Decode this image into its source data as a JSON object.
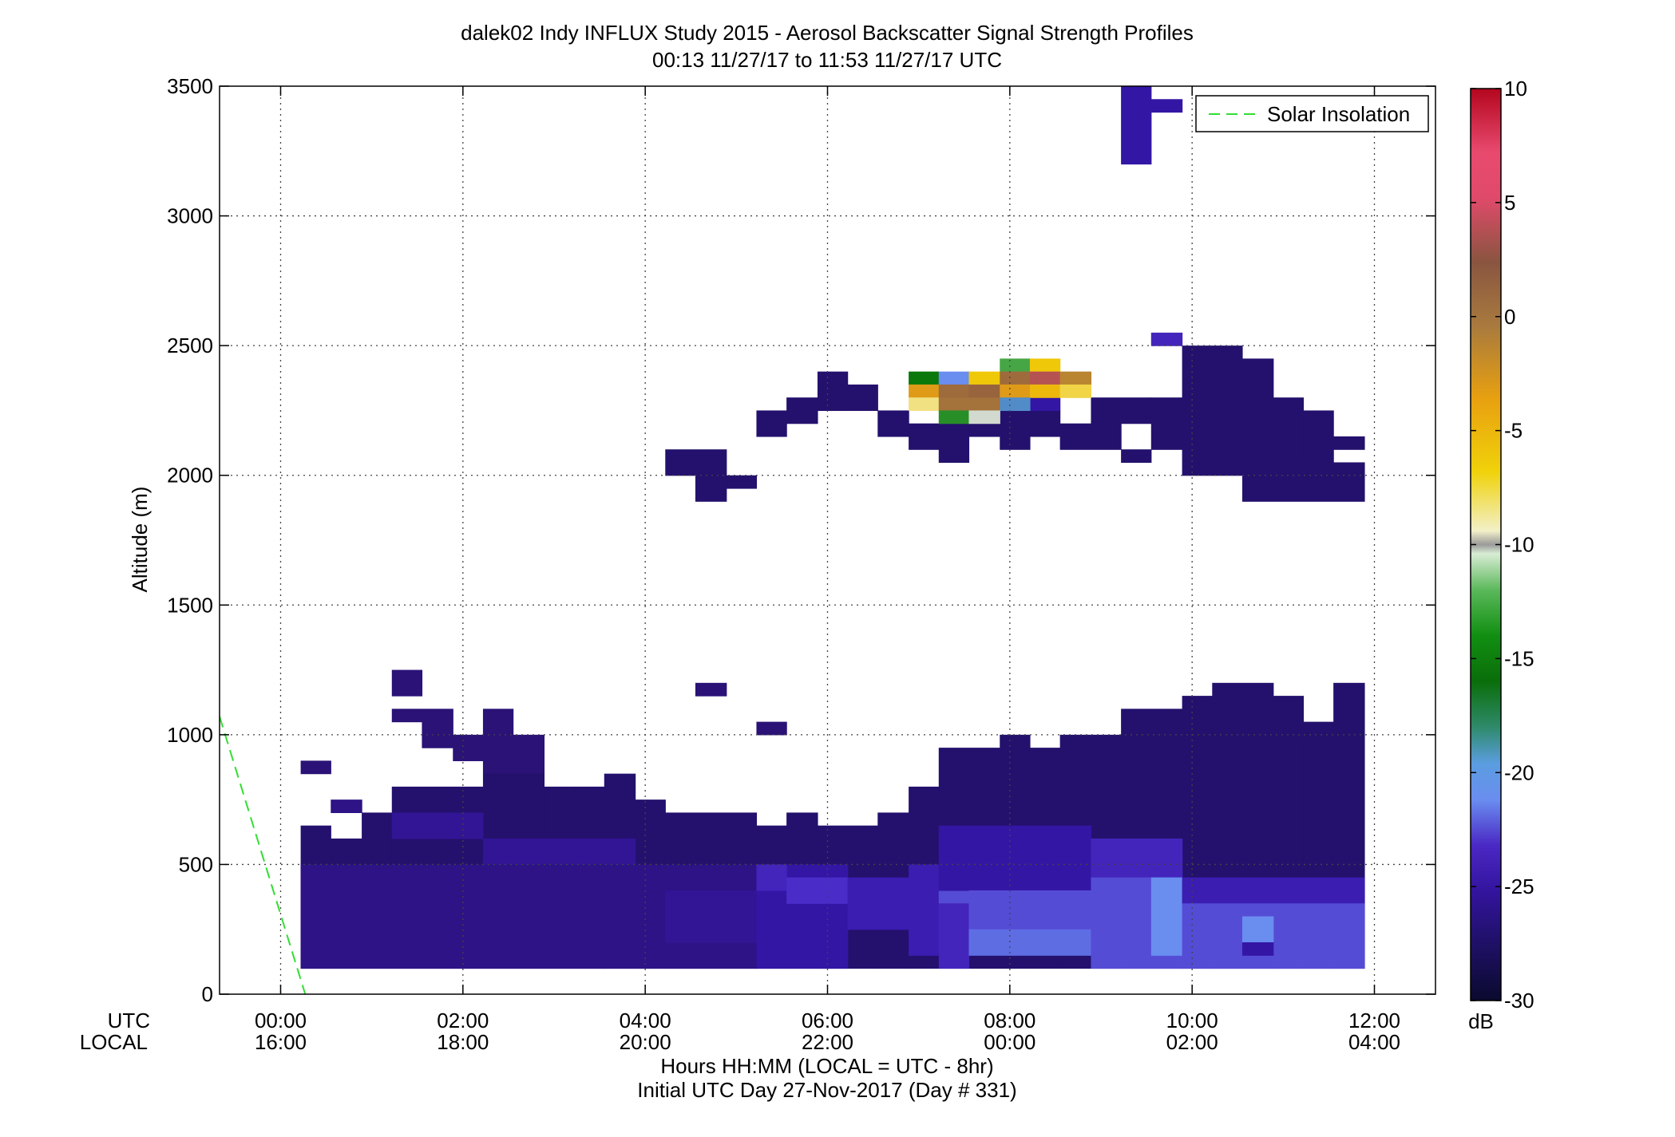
{
  "chart_data": {
    "type": "heatmap",
    "title": "dalek02 Indy INFLUX Study 2015 - Aerosol Backscatter Signal Strength Profiles",
    "subtitle": "00:13 11/27/17 to 11:53 11/27/17  UTC",
    "ylabel": "Altitude (m)",
    "xlabel": "Hours HH:MM  (LOCAL = UTC - 8hr)",
    "xlabel2": "Initial UTC Day 27-Nov-2017 (Day # 331)",
    "x_axis_row_labels": [
      "UTC",
      "LOCAL"
    ],
    "xlim_hours": [
      -0.67,
      12.67
    ],
    "ylim": [
      0,
      3500
    ],
    "y_ticks": [
      0,
      500,
      1000,
      1500,
      2000,
      2500,
      3000,
      3500
    ],
    "x_ticks_hours": [
      0,
      2,
      4,
      6,
      8,
      10,
      12
    ],
    "x_tick_labels_utc": [
      "00:00",
      "02:00",
      "04:00",
      "06:00",
      "08:00",
      "10:00",
      "12:00"
    ],
    "x_tick_labels_local": [
      "16:00",
      "18:00",
      "20:00",
      "22:00",
      "00:00",
      "02:00",
      "04:00"
    ],
    "grid": true,
    "legend": {
      "placement": "top-right",
      "entries": [
        {
          "label": "Solar Insolation",
          "color": "#33dd33",
          "style": "dashed"
        }
      ]
    },
    "colorbar": {
      "range": [
        -30,
        10
      ],
      "ticks": [
        10,
        5,
        0,
        -5,
        -10,
        -15,
        -20,
        -25,
        -30
      ],
      "unit": "dB"
    },
    "solar_insolation_line": [
      [
        -0.67,
        1070
      ],
      [
        0.27,
        0
      ]
    ],
    "bin_width_hours": 0.333,
    "bin_height_m": 50,
    "regions": [
      {
        "value": -26.5,
        "x0": 0.22,
        "x1": 0.55,
        "y0": 850,
        "y1": 900
      },
      {
        "value": -26,
        "x0": 0.55,
        "x1": 0.89,
        "y0": 700,
        "y1": 750
      },
      {
        "value": -26.5,
        "x0": 1.22,
        "x1": 1.55,
        "y0": 1150,
        "y1": 1250
      },
      {
        "value": -26.5,
        "x0": 1.22,
        "x1": 1.89,
        "y0": 1050,
        "y1": 1100
      },
      {
        "value": -26.5,
        "x0": 1.55,
        "x1": 1.89,
        "y0": 950,
        "y1": 1050
      },
      {
        "value": -26.5,
        "x0": 2.22,
        "x1": 2.55,
        "y0": 1000,
        "y1": 1100
      },
      {
        "value": -26.5,
        "x0": 1.89,
        "x1": 2.89,
        "y0": 900,
        "y1": 1000
      },
      {
        "value": -26.5,
        "x0": 2.22,
        "x1": 2.89,
        "y0": 850,
        "y1": 900
      },
      {
        "value": -26.5,
        "x0": 4.55,
        "x1": 4.89,
        "y0": 1150,
        "y1": 1200
      },
      {
        "value": -26.5,
        "x0": 5.22,
        "x1": 5.55,
        "y0": 1000,
        "y1": 1050
      },
      {
        "value": -27,
        "x0": 0.22,
        "x1": 0.55,
        "y0": 100,
        "y1": 650
      },
      {
        "value": -27,
        "x0": 0.55,
        "x1": 0.89,
        "y0": 100,
        "y1": 600
      },
      {
        "value": -27,
        "x0": 0.89,
        "x1": 1.22,
        "y0": 100,
        "y1": 700
      },
      {
        "value": -27,
        "x0": 1.22,
        "x1": 2.22,
        "y0": 100,
        "y1": 800
      },
      {
        "value": -27,
        "x0": 2.22,
        "x1": 2.89,
        "y0": 100,
        "y1": 850
      },
      {
        "value": -27,
        "x0": 2.89,
        "x1": 3.22,
        "y0": 100,
        "y1": 800
      },
      {
        "value": -27,
        "x0": 3.22,
        "x1": 3.55,
        "y0": 100,
        "y1": 800
      },
      {
        "value": -27,
        "x0": 3.55,
        "x1": 3.89,
        "y0": 100,
        "y1": 850
      },
      {
        "value": -27,
        "x0": 3.89,
        "x1": 4.22,
        "y0": 100,
        "y1": 750
      },
      {
        "value": -27,
        "x0": 4.22,
        "x1": 5.22,
        "y0": 100,
        "y1": 700
      },
      {
        "value": -27,
        "x0": 5.22,
        "x1": 5.55,
        "y0": 100,
        "y1": 650
      },
      {
        "value": -27,
        "x0": 5.55,
        "x1": 5.89,
        "y0": 100,
        "y1": 700
      },
      {
        "value": -27,
        "x0": 5.89,
        "x1": 6.55,
        "y0": 100,
        "y1": 650
      },
      {
        "value": -27,
        "x0": 6.55,
        "x1": 6.89,
        "y0": 100,
        "y1": 700
      },
      {
        "value": -27,
        "x0": 6.89,
        "x1": 7.22,
        "y0": 100,
        "y1": 800
      },
      {
        "value": -27,
        "x0": 7.22,
        "x1": 7.89,
        "y0": 100,
        "y1": 950
      },
      {
        "value": -27,
        "x0": 7.89,
        "x1": 8.22,
        "y0": 100,
        "y1": 1000
      },
      {
        "value": -27,
        "x0": 8.22,
        "x1": 8.55,
        "y0": 100,
        "y1": 950
      },
      {
        "value": -27,
        "x0": 8.55,
        "x1": 9.22,
        "y0": 100,
        "y1": 1000
      },
      {
        "value": -27,
        "x0": 9.22,
        "x1": 9.89,
        "y0": 100,
        "y1": 1100
      },
      {
        "value": -27,
        "x0": 9.89,
        "x1": 10.22,
        "y0": 100,
        "y1": 1150
      },
      {
        "value": -27,
        "x0": 10.22,
        "x1": 10.89,
        "y0": 100,
        "y1": 1200
      },
      {
        "value": -27,
        "x0": 10.89,
        "x1": 11.22,
        "y0": 100,
        "y1": 1150
      },
      {
        "value": -27,
        "x0": 11.22,
        "x1": 11.55,
        "y0": 100,
        "y1": 1050
      },
      {
        "value": -27,
        "x0": 11.55,
        "x1": 11.89,
        "y0": 100,
        "y1": 1200
      },
      {
        "value": -25.5,
        "x0": 1.22,
        "x1": 2.22,
        "y0": 600,
        "y1": 700
      },
      {
        "value": -25.5,
        "x0": 2.22,
        "x1": 3.89,
        "y0": 500,
        "y1": 600
      },
      {
        "value": -26,
        "x0": 0.22,
        "x1": 5.22,
        "y0": 100,
        "y1": 500
      },
      {
        "value": -25.5,
        "x0": 4.22,
        "x1": 5.22,
        "y0": 200,
        "y1": 400
      },
      {
        "value": -25,
        "x0": 5.22,
        "x1": 6.22,
        "y0": 100,
        "y1": 500
      },
      {
        "value": -24,
        "x0": 5.22,
        "x1": 5.55,
        "y0": 400,
        "y1": 500
      },
      {
        "value": -23.5,
        "x0": 5.55,
        "x1": 6.22,
        "y0": 350,
        "y1": 450
      },
      {
        "value": -24.5,
        "x0": 6.22,
        "x1": 6.89,
        "y0": 250,
        "y1": 450
      },
      {
        "value": -24.5,
        "x0": 6.89,
        "x1": 7.22,
        "y0": 150,
        "y1": 500
      },
      {
        "value": -23,
        "x0": 7.22,
        "x1": 7.55,
        "y0": 350,
        "y1": 400
      },
      {
        "value": -24,
        "x0": 7.22,
        "x1": 7.55,
        "y0": 100,
        "y1": 350
      },
      {
        "value": -25,
        "x0": 7.22,
        "x1": 8.89,
        "y0": 400,
        "y1": 650
      },
      {
        "value": -23,
        "x0": 7.55,
        "x1": 8.89,
        "y0": 250,
        "y1": 400
      },
      {
        "value": -22.5,
        "x0": 7.55,
        "x1": 8.89,
        "y0": 150,
        "y1": 250
      },
      {
        "value": -24,
        "x0": 8.89,
        "x1": 9.89,
        "y0": 450,
        "y1": 600
      },
      {
        "value": -23,
        "x0": 8.89,
        "x1": 9.89,
        "y0": 100,
        "y1": 450
      },
      {
        "value": -22,
        "x0": 9.55,
        "x1": 9.89,
        "y0": 150,
        "y1": 450
      },
      {
        "value": -24.5,
        "x0": 9.89,
        "x1": 11.89,
        "y0": 350,
        "y1": 450
      },
      {
        "value": -23,
        "x0": 9.89,
        "x1": 11.89,
        "y0": 100,
        "y1": 350
      },
      {
        "value": -22,
        "x0": 10.55,
        "x1": 10.89,
        "y0": 200,
        "y1": 300
      },
      {
        "value": -25,
        "x0": 10.55,
        "x1": 10.89,
        "y0": 150,
        "y1": 200
      },
      {
        "value": -27,
        "x0": 4.22,
        "x1": 4.89,
        "y0": 2000,
        "y1": 2100
      },
      {
        "value": -27,
        "x0": 4.55,
        "x1": 4.89,
        "y0": 1900,
        "y1": 2000
      },
      {
        "value": -27,
        "x0": 4.89,
        "x1": 5.22,
        "y0": 1950,
        "y1": 2000
      },
      {
        "value": -27,
        "x0": 5.22,
        "x1": 5.55,
        "y0": 2150,
        "y1": 2250
      },
      {
        "value": -27,
        "x0": 5.55,
        "x1": 5.89,
        "y0": 2200,
        "y1": 2300
      },
      {
        "value": -27,
        "x0": 5.89,
        "x1": 6.22,
        "y0": 2250,
        "y1": 2400
      },
      {
        "value": -27,
        "x0": 6.22,
        "x1": 6.55,
        "y0": 2250,
        "y1": 2350
      },
      {
        "value": -27,
        "x0": 6.55,
        "x1": 6.89,
        "y0": 2150,
        "y1": 2250
      },
      {
        "value": -27,
        "x0": 6.89,
        "x1": 7.55,
        "y0": 2100,
        "y1": 2200
      },
      {
        "value": -27,
        "x0": 7.22,
        "x1": 7.55,
        "y0": 2050,
        "y1": 2100
      },
      {
        "value": -27,
        "x0": 7.55,
        "x1": 8.55,
        "y0": 2150,
        "y1": 2250
      },
      {
        "value": -27,
        "x0": 7.89,
        "x1": 8.22,
        "y0": 2100,
        "y1": 2150
      },
      {
        "value": -27,
        "x0": 8.55,
        "x1": 9.22,
        "y0": 2100,
        "y1": 2200
      },
      {
        "value": -27,
        "x0": 8.89,
        "x1": 9.55,
        "y0": 2200,
        "y1": 2300
      },
      {
        "value": -27,
        "x0": 9.22,
        "x1": 9.55,
        "y0": 2050,
        "y1": 2100
      },
      {
        "value": -27,
        "x0": 9.55,
        "x1": 9.89,
        "y0": 2100,
        "y1": 2300
      },
      {
        "value": -27,
        "x0": 9.89,
        "x1": 10.55,
        "y0": 2200,
        "y1": 2500
      },
      {
        "value": -27,
        "x0": 9.89,
        "x1": 10.55,
        "y0": 2000,
        "y1": 2200
      },
      {
        "value": -27,
        "x0": 10.55,
        "x1": 10.89,
        "y0": 2050,
        "y1": 2450
      },
      {
        "value": -27,
        "x0": 10.89,
        "x1": 11.22,
        "y0": 2050,
        "y1": 2300
      },
      {
        "value": -27,
        "x0": 11.22,
        "x1": 11.55,
        "y0": 1950,
        "y1": 2250
      },
      {
        "value": -27,
        "x0": 10.55,
        "x1": 11.89,
        "y0": 1900,
        "y1": 2050
      },
      {
        "value": -27,
        "x0": 11.55,
        "x1": 11.89,
        "y0": 2100,
        "y1": 2150
      },
      {
        "value": -24,
        "x0": 9.55,
        "x1": 9.89,
        "y0": 2500,
        "y1": 2550
      },
      {
        "value": -25,
        "x0": 9.22,
        "x1": 9.55,
        "y0": 3200,
        "y1": 3500
      },
      {
        "value": -25,
        "x0": 9.55,
        "x1": 9.89,
        "y0": 3400,
        "y1": 3450
      },
      {
        "value": -25,
        "x0": 7.89,
        "x1": 8.55,
        "y0": 2250,
        "y1": 2300
      },
      {
        "value": -17,
        "x0": 6.89,
        "x1": 7.22,
        "y0": 2350,
        "y1": 2400
      },
      {
        "value": -22,
        "x0": 7.22,
        "x1": 7.55,
        "y0": 2350,
        "y1": 2400
      },
      {
        "value": -6,
        "x0": 7.55,
        "x1": 7.89,
        "y0": 2350,
        "y1": 2400
      },
      {
        "value": -15,
        "x0": 7.89,
        "x1": 8.22,
        "y0": 2400,
        "y1": 2450
      },
      {
        "value": -6,
        "x0": 8.22,
        "x1": 8.55,
        "y0": 2400,
        "y1": 2450
      },
      {
        "value": 1,
        "x0": 7.89,
        "x1": 8.22,
        "y0": 2350,
        "y1": 2400
      },
      {
        "value": 3.5,
        "x0": 8.22,
        "x1": 8.55,
        "y0": 2350,
        "y1": 2400
      },
      {
        "value": -1,
        "x0": 8.55,
        "x1": 8.89,
        "y0": 2350,
        "y1": 2400
      },
      {
        "value": -3,
        "x0": 6.89,
        "x1": 7.22,
        "y0": 2300,
        "y1": 2350
      },
      {
        "value": 1,
        "x0": 7.22,
        "x1": 7.55,
        "y0": 2300,
        "y1": 2350
      },
      {
        "value": 1.5,
        "x0": 7.55,
        "x1": 7.89,
        "y0": 2300,
        "y1": 2350
      },
      {
        "value": -3,
        "x0": 7.89,
        "x1": 8.22,
        "y0": 2300,
        "y1": 2350
      },
      {
        "value": -5,
        "x0": 8.22,
        "x1": 8.55,
        "y0": 2300,
        "y1": 2350
      },
      {
        "value": -7,
        "x0": 8.55,
        "x1": 8.89,
        "y0": 2300,
        "y1": 2350
      },
      {
        "value": -8,
        "x0": 6.89,
        "x1": 7.22,
        "y0": 2250,
        "y1": 2300
      },
      {
        "value": 0.5,
        "x0": 7.22,
        "x1": 7.89,
        "y0": 2250,
        "y1": 2300
      },
      {
        "value": -21,
        "x0": 7.89,
        "x1": 8.22,
        "y0": 2250,
        "y1": 2300
      },
      {
        "value": -16,
        "x0": 7.22,
        "x1": 7.55,
        "y0": 2200,
        "y1": 2250
      },
      {
        "value": -10.5,
        "x0": 7.55,
        "x1": 7.89,
        "y0": 2200,
        "y1": 2250
      }
    ]
  }
}
